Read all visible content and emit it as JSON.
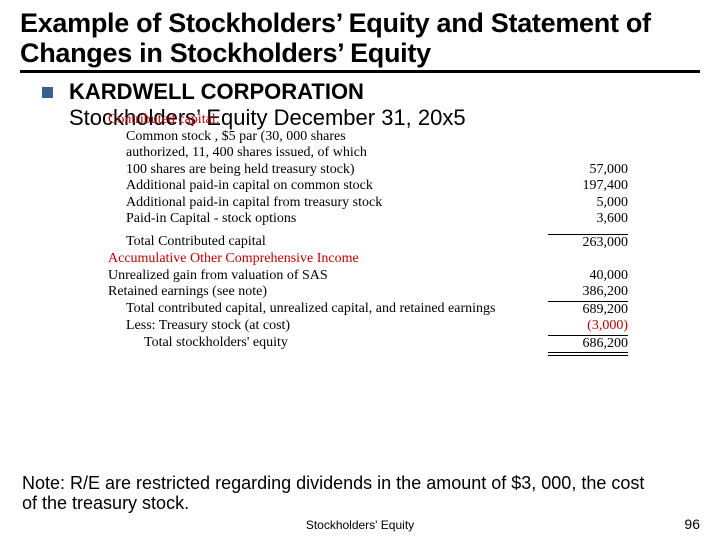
{
  "title": "Example of Stockholders’ Equity and Statement of Changes in Stockholders’ Equity",
  "company": "KARDWELL CORPORATION",
  "subtitle": "Stockholders’ Equity December 31, 20x5",
  "headers": {
    "contributed": "Contributed capital:",
    "aoci": "Accumulative Other Comprehensive Income"
  },
  "rows": {
    "common1": "Common stock , $5 par (30, 000 shares",
    "common2": "authorized, 11, 400 shares issued, of which",
    "common3": "100 shares are being held treasury stock)",
    "common_val": "57,000",
    "apic_common": "Additional paid-in capital on common stock",
    "apic_common_val": "197,400",
    "apic_treas": "Additional paid-in capital from treasury stock",
    "apic_treas_val": "5,000",
    "pic_opts": "Paid-in Capital - stock options",
    "pic_opts_val": "3,600",
    "tcc": "Total Contributed capital",
    "tcc_val": "263,000",
    "unreal": "Unrealized gain from valuation of SAS",
    "unreal_val": "40,000",
    "re": "Retained earnings (see note)",
    "re_val": "386,200",
    "total_cu_re": "Total contributed capital, unrealized capital, and retained earnings",
    "total_cu_re_val": "689,200",
    "less_treas": "Less: Treasury stock (at cost)",
    "less_treas_val": "(3,000)",
    "total_se": "Total stockholders' equity",
    "total_se_val": "686,200"
  },
  "note": "Note: R/E are restricted regarding dividends in the amount of $3, 000, the cost of the treasury stock.",
  "footer": "Stockholders' Equity",
  "page": "96",
  "colors": {
    "bullet": "#39608f",
    "neg": "#c00000"
  }
}
